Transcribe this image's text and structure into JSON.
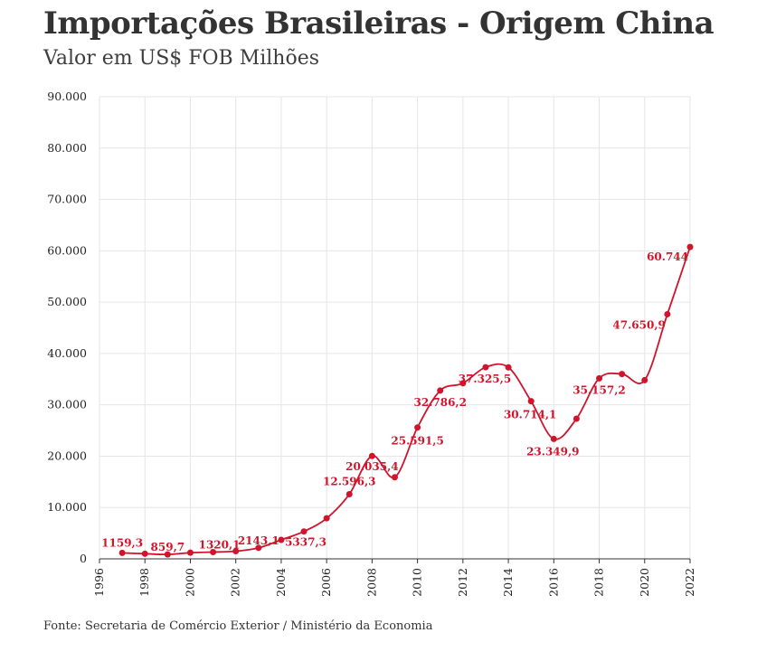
{
  "title": "Importações Brasileiras - Origem China",
  "subtitle": "Valor em US$ FOB Milhões",
  "source": "Fonte: Secretaria de Comércio Exterior / Ministério da Economia",
  "colors": {
    "series": "#d0142c",
    "grid": "#e6e6e6",
    "text": "#333333"
  },
  "chart_data": {
    "type": "line",
    "title": "Importações Brasileiras - Origem China",
    "subtitle": "Valor em US$ FOB Milhões",
    "xlabel": "",
    "ylabel": "",
    "xlim": [
      1996,
      2022
    ],
    "ylim": [
      0,
      90000
    ],
    "grid": true,
    "x_ticks": [
      "1996",
      "1998",
      "2000",
      "2002",
      "2004",
      "2006",
      "2008",
      "2010",
      "2012",
      "2014",
      "2016",
      "2018",
      "2020",
      "2022"
    ],
    "y_ticks": [
      "0",
      "10.000",
      "20.000",
      "30.000",
      "40.000",
      "50.000",
      "60.000",
      "70.000",
      "80.000",
      "90.000"
    ],
    "series": [
      {
        "x": [
          1997,
          1998,
          1999,
          2000,
          2001,
          2002,
          2003,
          2004,
          2005,
          2006,
          2007,
          2008,
          2009,
          2010,
          2011,
          2012,
          2013,
          2014,
          2015,
          2016,
          2017,
          2018,
          2019,
          2020,
          2021,
          2022
        ],
        "y": [
          1159.3,
          1000,
          859.7,
          1200,
          1320.1,
          1500,
          2143.1,
          3700,
          5337.3,
          7900,
          12596.3,
          20035.4,
          15900,
          25591.5,
          32786.2,
          34200,
          37325.5,
          37300,
          30714.1,
          23349.9,
          27300,
          35157.2,
          36000,
          34800,
          47650.9,
          60744
        ]
      }
    ],
    "data_labels": [
      {
        "x": 1997,
        "text": "1159,3"
      },
      {
        "x": 1999,
        "text": "859,7"
      },
      {
        "x": 2001,
        "text": "1320,1"
      },
      {
        "x": 2003,
        "text": "2143,1"
      },
      {
        "x": 2005,
        "text": "5337,3"
      },
      {
        "x": 2007,
        "text": "12.596,3"
      },
      {
        "x": 2008,
        "text": "20.035,4"
      },
      {
        "x": 2010,
        "text": "25.591,5"
      },
      {
        "x": 2011,
        "text": "32.786,2"
      },
      {
        "x": 2013,
        "text": "37.325,5"
      },
      {
        "x": 2015,
        "text": "30.714,1"
      },
      {
        "x": 2016,
        "text": "23.349,9"
      },
      {
        "x": 2018,
        "text": "35.157,2"
      },
      {
        "x": 2021,
        "text": "47.650,9"
      },
      {
        "x": 2022,
        "text": "60.744"
      }
    ]
  }
}
